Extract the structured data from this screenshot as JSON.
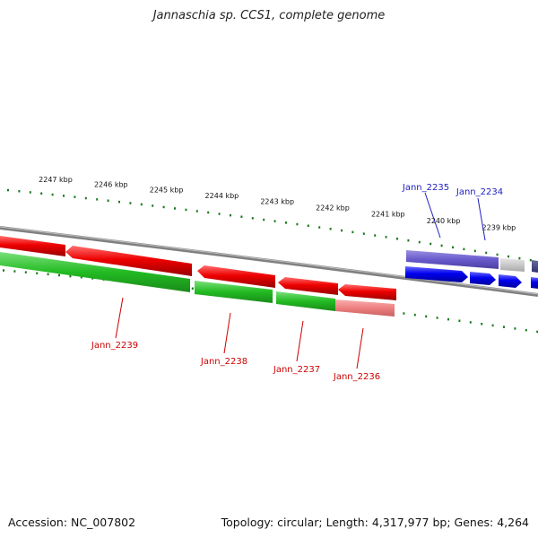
{
  "title": "Jannaschia sp. CCS1, complete genome",
  "footer": {
    "accession": "Accession: NC_007802",
    "topology": "Topology: circular; Length: 4,317,977 bp; Genes: 4,264"
  },
  "kbp_labels": [
    "2247 kbp",
    "2246 kbp",
    "2245 kbp",
    "2244 kbp",
    "2243 kbp",
    "2242 kbp",
    "2241 kbp",
    "2240 kbp",
    "2239 kbp"
  ],
  "gene_labels_forward": [
    "Jann_2235",
    "Jann_2234"
  ],
  "gene_labels_reverse": [
    "Jann_2239",
    "Jann_2238",
    "Jann_2237",
    "Jann_2236"
  ],
  "colors": {
    "forward_gene": "#0000ee",
    "reverse_gene": "#ee0000",
    "cds_track": "#22bb22",
    "backbone": "#808080",
    "tick": "#1a7a1a",
    "forward_label": "#2020c0",
    "reverse_label": "#cc0000"
  }
}
